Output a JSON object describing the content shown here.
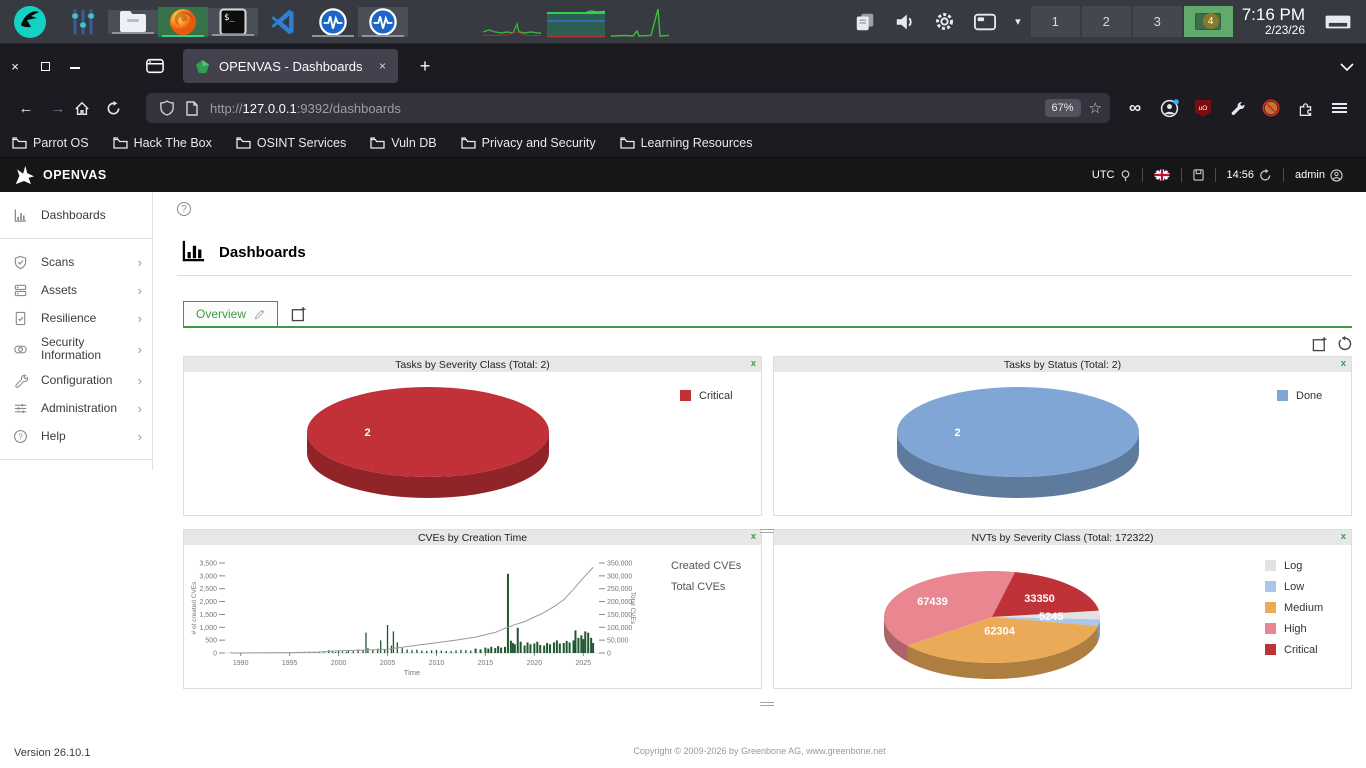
{
  "desktop_panel": {
    "workspaces": [
      "1",
      "2",
      "3",
      "4"
    ],
    "active_workspace": "4",
    "clock_time": "7:16 PM",
    "clock_date": "2/23/26"
  },
  "browser": {
    "tab_title": "OPENVAS - Dashboards",
    "window_controls": {
      "close": "×",
      "maximize": "",
      "minimize": ""
    },
    "new_tab_glyph": "+",
    "tab_close_glyph": "×",
    "url_scheme": "http://",
    "url_host": "127.0.0.1",
    "url_rest": ":9392/dashboards",
    "zoom_badge": "67%",
    "star_glyph": "☆",
    "bookmarks": [
      "Parrot OS",
      "Hack The Box",
      "OSINT Services",
      "Vuln DB",
      "Privacy and Security",
      "Learning Resources"
    ]
  },
  "app": {
    "brand": "OPENVAS",
    "header": {
      "timezone": "UTC",
      "session_time": "14:56",
      "user": "admin"
    },
    "sidebar": [
      {
        "label": "Dashboards",
        "expandable": false
      },
      {
        "label": "Scans",
        "expandable": true
      },
      {
        "label": "Assets",
        "expandable": true
      },
      {
        "label": "Resilience",
        "expandable": true
      },
      {
        "label": "Security Information",
        "expandable": true
      },
      {
        "label": "Configuration",
        "expandable": true
      },
      {
        "label": "Administration",
        "expandable": true
      },
      {
        "label": "Help",
        "expandable": true
      }
    ],
    "chevron_glyph": "›",
    "help_glyph": "?",
    "page_title": "Dashboards",
    "tabs": [
      {
        "label": "Overview"
      }
    ],
    "widget_close_glyph": "x",
    "footer_version": "Version 26.10.1",
    "footer_copyright_prefix": "Copyright © 2009-2026 by Greenbone AG, ",
    "footer_copyright_link": "www.greenbone.net"
  },
  "chart_data": [
    {
      "type": "pie",
      "title": "Tasks by Severity Class (Total: 2)",
      "total": 2,
      "legend_position": "top-right",
      "slices": [
        {
          "label": "Critical",
          "value": 2,
          "color": "#c23038",
          "label_r": 0.5
        }
      ]
    },
    {
      "type": "pie",
      "title": "Tasks by Status (Total: 2)",
      "total": 2,
      "legend_position": "top-right",
      "slices": [
        {
          "label": "Done",
          "value": 2,
          "color": "#7fa6d4",
          "label_r": 0.5
        }
      ]
    },
    {
      "type": "bar",
      "title": "CVEs by Creation Time",
      "xlabel": "Time",
      "ylabel_left": "# of created CVEs",
      "ylabel_right": "Total CVEs",
      "legend": [
        "Created CVEs",
        "Total CVEs"
      ],
      "bar_color": "#1e5631",
      "line_color": "#9a9a9a",
      "xlim": [
        1988.5,
        2026.5
      ],
      "ylim_left": [
        0,
        3500
      ],
      "ylim_right": [
        0,
        350000
      ],
      "x_ticks": [
        1990,
        1995,
        2000,
        2005,
        2010,
        2015,
        2020,
        2025
      ],
      "y_left_ticks": [
        "0",
        "500",
        "1,000",
        "1,500",
        "2,000",
        "2,500",
        "3,000",
        "3,500"
      ],
      "y_right_ticks": [
        "0",
        "50,000",
        "100,000",
        "150,000",
        "200,000",
        "250,000",
        "300,000",
        "350,000"
      ],
      "bars": [
        [
          1989,
          8
        ],
        [
          1989.5,
          5
        ],
        [
          1990,
          12
        ],
        [
          1990.5,
          6
        ],
        [
          1991,
          10
        ],
        [
          1991.5,
          5
        ],
        [
          1992,
          8
        ],
        [
          1992.5,
          12
        ],
        [
          1993,
          9
        ],
        [
          1993.5,
          6
        ],
        [
          1994,
          12
        ],
        [
          1994.5,
          8
        ],
        [
          1995,
          15
        ],
        [
          1995.5,
          10
        ],
        [
          1996,
          20
        ],
        [
          1996.5,
          12
        ],
        [
          1997,
          25
        ],
        [
          1997.5,
          15
        ],
        [
          1998,
          30
        ],
        [
          1998.5,
          20
        ],
        [
          1999,
          110
        ],
        [
          1999.4,
          55
        ],
        [
          1999.7,
          35
        ],
        [
          2000,
          85
        ],
        [
          2000.4,
          60
        ],
        [
          2000.8,
          45
        ],
        [
          2001,
          95
        ],
        [
          2001.5,
          75
        ],
        [
          2002,
          140
        ],
        [
          2002.5,
          110
        ],
        [
          2002.8,
          790
        ],
        [
          2003,
          190
        ],
        [
          2003.5,
          140
        ],
        [
          2004,
          170
        ],
        [
          2004.3,
          490
        ],
        [
          2004.7,
          150
        ],
        [
          2005,
          1090
        ],
        [
          2005.4,
          290
        ],
        [
          2005.6,
          840
        ],
        [
          2006,
          410
        ],
        [
          2006.5,
          190
        ],
        [
          2007,
          140
        ],
        [
          2007.5,
          110
        ],
        [
          2008,
          130
        ],
        [
          2008.5,
          95
        ],
        [
          2009,
          85
        ],
        [
          2009.5,
          105
        ],
        [
          2010,
          115
        ],
        [
          2010.5,
          95
        ],
        [
          2011,
          85
        ],
        [
          2011.5,
          75
        ],
        [
          2012,
          105
        ],
        [
          2012.5,
          125
        ],
        [
          2013,
          115
        ],
        [
          2013.5,
          95
        ],
        [
          2014,
          170
        ],
        [
          2014.5,
          140
        ],
        [
          2015,
          210
        ],
        [
          2015.3,
          170
        ],
        [
          2015.6,
          240
        ],
        [
          2016,
          190
        ],
        [
          2016.3,
          270
        ],
        [
          2016.6,
          210
        ],
        [
          2017,
          240
        ],
        [
          2017.3,
          3080
        ],
        [
          2017.6,
          480
        ],
        [
          2017.8,
          390
        ],
        [
          2018,
          340
        ],
        [
          2018.3,
          980
        ],
        [
          2018.6,
          440
        ],
        [
          2019,
          290
        ],
        [
          2019.3,
          410
        ],
        [
          2019.6,
          340
        ],
        [
          2020,
          370
        ],
        [
          2020.3,
          440
        ],
        [
          2020.6,
          310
        ],
        [
          2021,
          290
        ],
        [
          2021.3,
          390
        ],
        [
          2021.6,
          340
        ],
        [
          2022,
          410
        ],
        [
          2022.3,
          490
        ],
        [
          2022.6,
          370
        ],
        [
          2023,
          390
        ],
        [
          2023.3,
          470
        ],
        [
          2023.6,
          410
        ],
        [
          2024,
          490
        ],
        [
          2024.2,
          880
        ],
        [
          2024.5,
          590
        ],
        [
          2024.8,
          690
        ],
        [
          2025,
          540
        ],
        [
          2025.2,
          840
        ],
        [
          2025.5,
          790
        ],
        [
          2025.8,
          590
        ],
        [
          2026,
          390
        ]
      ],
      "total_line": [
        [
          1989,
          0
        ],
        [
          1995,
          1500
        ],
        [
          1998,
          4000
        ],
        [
          2000,
          9000
        ],
        [
          2002,
          11000
        ],
        [
          2004,
          13000
        ],
        [
          2005,
          14500
        ],
        [
          2006,
          20000
        ],
        [
          2008,
          30000
        ],
        [
          2010,
          40000
        ],
        [
          2012,
          50000
        ],
        [
          2014,
          62000
        ],
        [
          2016,
          80000
        ],
        [
          2017,
          96000
        ],
        [
          2018,
          110000
        ],
        [
          2019,
          122000
        ],
        [
          2020,
          140000
        ],
        [
          2021,
          158000
        ],
        [
          2022,
          180000
        ],
        [
          2023,
          207000
        ],
        [
          2024,
          248000
        ],
        [
          2025,
          292000
        ],
        [
          2026,
          333000
        ]
      ]
    },
    {
      "type": "pie",
      "title": "NVTs by Severity Class (Total: 172322)",
      "total": 172322,
      "start_angle": -8,
      "legend_position": "right",
      "slices": [
        {
          "label": "Log",
          "value": 5245,
          "color": "#e2e2e2",
          "label_r": 0.55
        },
        {
          "label": "Low",
          "value": 3984,
          "color": "#a9c7ec",
          "show_label": false
        },
        {
          "label": "Medium",
          "value": 62304,
          "color": "#eaaa57",
          "label_r": 0.3
        },
        {
          "label": "High",
          "value": 67439,
          "color": "#e9868f",
          "label_r": 0.65
        },
        {
          "label": "Critical",
          "value": 33350,
          "color": "#bf3338",
          "label_r": 0.6
        }
      ]
    }
  ]
}
